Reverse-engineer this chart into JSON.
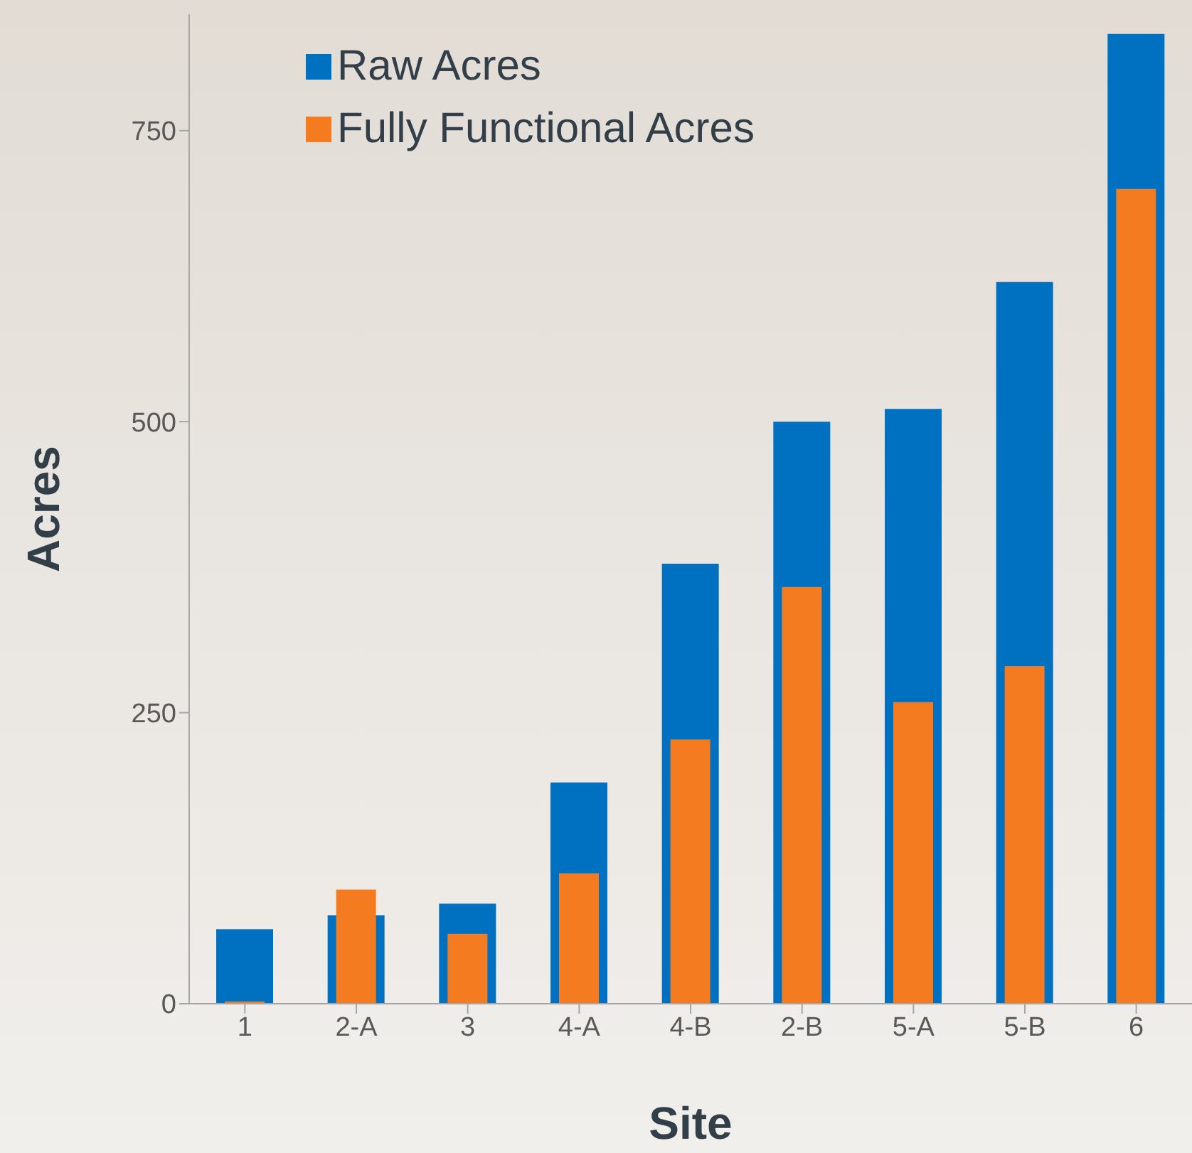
{
  "chart_data": {
    "type": "bar",
    "xlabel": "Site",
    "ylabel": "Acres",
    "categories": [
      "1",
      "2-A",
      "3",
      "4-A",
      "4-B",
      "2-B",
      "5-A",
      "5-B",
      "6"
    ],
    "series": [
      {
        "name": "Raw Acres",
        "color": "#0070c0",
        "values": [
          64,
          76,
          86,
          190,
          378,
          500,
          511,
          620,
          833
        ]
      },
      {
        "name": "Fully Functional Acres",
        "color": "#f47b20",
        "values": [
          2,
          98,
          60,
          112,
          227,
          358,
          259,
          290,
          700
        ]
      }
    ],
    "ylim": [
      0,
      850
    ],
    "yticks": [
      0,
      250,
      500,
      750
    ],
    "grid": false,
    "legend": "top left"
  }
}
